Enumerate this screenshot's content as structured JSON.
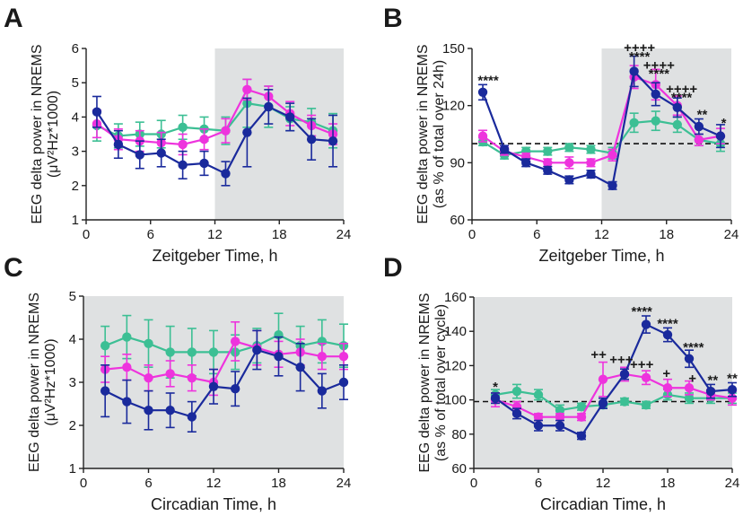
{
  "colors": {
    "blue": "#1a2a9c",
    "magenta": "#ee33dd",
    "green": "#3cbf94",
    "shade": "#dfe1e2"
  },
  "chart_data": [
    {
      "panel": "A",
      "type": "line",
      "xlabel": "Zeitgeber Time, h",
      "ylabel": [
        "EEG delta power in NREMS",
        "(μV²Hz*1000)"
      ],
      "xlim": [
        0,
        24
      ],
      "ylim": [
        1,
        6
      ],
      "xticks": [
        "0",
        "6",
        "12",
        "18",
        "24"
      ],
      "yticks": [
        "1",
        "2",
        "3",
        "4",
        "5",
        "6"
      ],
      "shaded_x": [
        12,
        24
      ],
      "reference_line": null,
      "x": [
        1,
        3,
        5,
        7,
        9,
        11,
        13,
        15,
        17,
        19,
        21,
        23
      ],
      "series": [
        {
          "name": "green",
          "color_key": "green",
          "values": [
            3.75,
            3.45,
            3.5,
            3.5,
            3.7,
            3.65,
            3.6,
            4.4,
            4.3,
            3.95,
            3.85,
            3.6
          ],
          "err": [
            0.45,
            0.35,
            0.35,
            0.4,
            0.35,
            0.35,
            0.4,
            0.7,
            0.6,
            0.35,
            0.4,
            0.5
          ]
        },
        {
          "name": "magenta",
          "color_key": "magenta",
          "values": [
            3.8,
            3.35,
            3.3,
            3.25,
            3.2,
            3.35,
            3.6,
            4.8,
            4.6,
            4.1,
            3.75,
            3.5
          ],
          "err": [
            0.4,
            0.3,
            0.3,
            0.3,
            0.3,
            0.3,
            0.35,
            0.3,
            0.3,
            0.35,
            0.3,
            0.3
          ]
        },
        {
          "name": "blue",
          "color_key": "blue",
          "values": [
            4.15,
            3.2,
            2.9,
            2.95,
            2.6,
            2.65,
            2.35,
            3.55,
            4.3,
            4.0,
            3.35,
            3.3
          ],
          "err": [
            0.45,
            0.4,
            0.4,
            0.4,
            0.4,
            0.35,
            0.35,
            1.0,
            0.5,
            0.4,
            0.6,
            0.75
          ]
        }
      ],
      "annotations": []
    },
    {
      "panel": "B",
      "type": "line",
      "xlabel": "Zeitgeber Time, h",
      "ylabel": [
        "EEG delta power in NREMS",
        "(as % of total over 24h)"
      ],
      "xlim": [
        0,
        24
      ],
      "ylim": [
        60,
        150
      ],
      "xticks": [
        "0",
        "6",
        "12",
        "18",
        "24"
      ],
      "yticks": [
        "60",
        "90",
        "120",
        "150"
      ],
      "shaded_x": [
        12,
        24
      ],
      "reference_line": 100,
      "x": [
        1,
        3,
        5,
        7,
        9,
        11,
        13,
        15,
        17,
        19,
        21,
        23
      ],
      "series": [
        {
          "name": "green",
          "color_key": "green",
          "values": [
            101,
            94,
            96,
            96,
            98,
            97,
            95,
            111,
            112,
            110,
            102,
            100
          ],
          "err": [
            2,
            2,
            2,
            2,
            2,
            2,
            3,
            5,
            5,
            4,
            3,
            4
          ]
        },
        {
          "name": "magenta",
          "color_key": "magenta",
          "values": [
            104,
            96,
            93,
            90,
            90,
            90,
            94,
            135,
            131,
            120,
            102,
            104
          ],
          "err": [
            3,
            2,
            2,
            2,
            3,
            2,
            3,
            6,
            8,
            5,
            3,
            4
          ]
        },
        {
          "name": "blue",
          "color_key": "blue",
          "values": [
            127,
            97,
            90,
            86,
            81,
            84,
            78,
            138,
            126,
            119,
            109,
            104
          ],
          "err": [
            4,
            2,
            2,
            2,
            2,
            2,
            2,
            8,
            6,
            5,
            4,
            6
          ]
        }
      ],
      "annotations": [
        {
          "x": 1.5,
          "y": 131,
          "text": "****"
        },
        {
          "x": 15.5,
          "y": 148,
          "text": "++++"
        },
        {
          "x": 15.5,
          "y": 143.5,
          "text": "****"
        },
        {
          "x": 17.3,
          "y": 139,
          "text": "++++"
        },
        {
          "x": 17.3,
          "y": 134.5,
          "text": "****"
        },
        {
          "x": 19.4,
          "y": 126.5,
          "text": "++++"
        },
        {
          "x": 19.4,
          "y": 122,
          "text": "****"
        },
        {
          "x": 21.3,
          "y": 113,
          "text": "**"
        },
        {
          "x": 23.3,
          "y": 108.5,
          "text": "*"
        }
      ]
    },
    {
      "panel": "C",
      "type": "line",
      "xlabel": "Circadian Time, h",
      "ylabel": [
        "EEG delta power in NREMS",
        "(μV²Hz*1000)"
      ],
      "xlim": [
        0,
        24
      ],
      "ylim": [
        1,
        5
      ],
      "xticks": [
        "0",
        "6",
        "12",
        "18",
        "24"
      ],
      "yticks": [
        "1",
        "2",
        "3",
        "4",
        "5"
      ],
      "shaded_x": [
        0,
        24
      ],
      "reference_line": null,
      "x": [
        2,
        4,
        6,
        8,
        10,
        12,
        14,
        16,
        18,
        20,
        22,
        24
      ],
      "series": [
        {
          "name": "green",
          "color_key": "green",
          "values": [
            3.85,
            4.05,
            3.9,
            3.7,
            3.7,
            3.7,
            3.7,
            3.85,
            4.1,
            3.85,
            3.95,
            3.85
          ],
          "err": [
            0.45,
            0.5,
            0.55,
            0.6,
            0.55,
            0.5,
            0.4,
            0.4,
            0.5,
            0.45,
            0.5,
            0.5
          ]
        },
        {
          "name": "magenta",
          "color_key": "magenta",
          "values": [
            3.3,
            3.35,
            3.1,
            3.2,
            3.1,
            3.0,
            3.95,
            3.8,
            3.65,
            3.7,
            3.6,
            3.6
          ],
          "err": [
            0.3,
            0.3,
            0.3,
            0.3,
            0.3,
            0.3,
            0.45,
            0.4,
            0.3,
            0.3,
            0.3,
            0.3
          ]
        },
        {
          "name": "blue",
          "color_key": "blue",
          "values": [
            2.8,
            2.55,
            2.35,
            2.35,
            2.2,
            2.9,
            2.85,
            3.75,
            3.6,
            3.35,
            2.8,
            3.0
          ],
          "err": [
            0.6,
            0.5,
            0.45,
            0.4,
            0.35,
            0.4,
            0.4,
            0.45,
            0.45,
            0.55,
            0.4,
            0.4
          ]
        }
      ],
      "annotations": []
    },
    {
      "panel": "D",
      "type": "line",
      "xlabel": "Circadian Time, h",
      "ylabel": [
        "EEG delta power in NREMS",
        "(as % of total over cycle)"
      ],
      "xlim": [
        0,
        24
      ],
      "ylim": [
        60,
        160
      ],
      "xticks": [
        "0",
        "6",
        "12",
        "18",
        "24"
      ],
      "yticks": [
        "60",
        "80",
        "100",
        "120",
        "140",
        "160"
      ],
      "shaded_x": [
        0,
        24
      ],
      "reference_line": 99,
      "x": [
        2,
        4,
        6,
        8,
        10,
        12,
        14,
        16,
        18,
        20,
        22,
        24
      ],
      "series": [
        {
          "name": "green",
          "color_key": "green",
          "values": [
            103,
            105,
            103,
            94,
            96,
            97,
            99,
            97,
            103,
            101,
            101,
            101
          ],
          "err": [
            3,
            4,
            3,
            3,
            2,
            2,
            2,
            2,
            3,
            3,
            3,
            3
          ]
        },
        {
          "name": "magenta",
          "color_key": "magenta",
          "values": [
            100,
            96,
            90,
            90,
            90,
            112,
            115,
            113,
            107,
            107,
            103,
            101
          ],
          "err": [
            4,
            3,
            2,
            2,
            2,
            10,
            4,
            4,
            5,
            4,
            3,
            4
          ]
        },
        {
          "name": "blue",
          "color_key": "blue",
          "values": [
            101,
            92,
            85,
            85,
            79,
            98,
            115,
            144,
            138,
            124,
            105,
            106
          ],
          "err": [
            3,
            3,
            3,
            3,
            2,
            3,
            3,
            5,
            4,
            5,
            4,
            4
          ]
        }
      ],
      "annotations": [
        {
          "x": 2.0,
          "y": 105,
          "text": "*"
        },
        {
          "x": 11.6,
          "y": 124,
          "text": "++"
        },
        {
          "x": 13.7,
          "y": 121,
          "text": "+++"
        },
        {
          "x": 15.6,
          "y": 149,
          "text": "****"
        },
        {
          "x": 15.6,
          "y": 118,
          "text": "+++"
        },
        {
          "x": 18.0,
          "y": 142,
          "text": "****"
        },
        {
          "x": 17.9,
          "y": 113,
          "text": "+"
        },
        {
          "x": 20.4,
          "y": 128,
          "text": "****"
        },
        {
          "x": 20.3,
          "y": 110,
          "text": "+"
        },
        {
          "x": 22.2,
          "y": 109,
          "text": "**"
        },
        {
          "x": 24.0,
          "y": 110,
          "text": "**"
        }
      ]
    }
  ]
}
